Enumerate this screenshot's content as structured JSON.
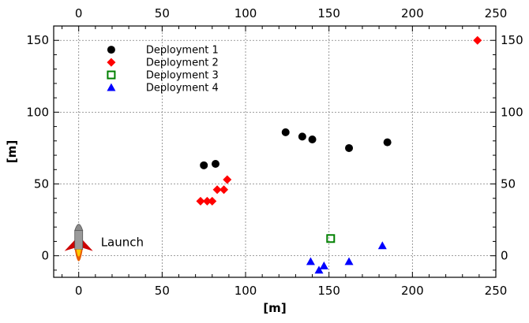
{
  "chart_data": {
    "type": "scatter",
    "xlabel": "[m]",
    "ylabel": "[m]",
    "xlim": [
      -15,
      250
    ],
    "ylim": [
      -15,
      160
    ],
    "x_ticks": [
      0,
      50,
      100,
      150,
      200,
      250
    ],
    "y_ticks": [
      0,
      50,
      100,
      150
    ],
    "grid": true,
    "legend_position": "top-left",
    "series": [
      {
        "name": "Deployment 1",
        "marker": "circle",
        "color": "#000000",
        "points": [
          [
            75,
            63
          ],
          [
            82,
            64
          ],
          [
            124,
            86
          ],
          [
            134,
            83
          ],
          [
            140,
            81
          ],
          [
            162,
            75
          ],
          [
            185,
            79
          ]
        ]
      },
      {
        "name": "Deployment 2",
        "marker": "diamond",
        "color": "#ff0000",
        "points": [
          [
            73,
            38
          ],
          [
            77,
            38
          ],
          [
            80,
            38
          ],
          [
            83,
            46
          ],
          [
            87,
            46
          ],
          [
            89,
            53
          ],
          [
            239,
            150
          ]
        ]
      },
      {
        "name": "Deployment 3",
        "marker": "square-open",
        "color": "#008000",
        "points": [
          [
            151,
            12
          ]
        ]
      },
      {
        "name": "Deployment 4",
        "marker": "triangle",
        "color": "#0000ff",
        "points": [
          [
            139,
            -4
          ],
          [
            144,
            -10
          ],
          [
            147,
            -7
          ],
          [
            162,
            -4
          ],
          [
            182,
            7
          ]
        ]
      }
    ],
    "annotations": [
      {
        "text": "Launch",
        "x": 0,
        "y": 0,
        "icon": "rocket-icon"
      }
    ]
  }
}
